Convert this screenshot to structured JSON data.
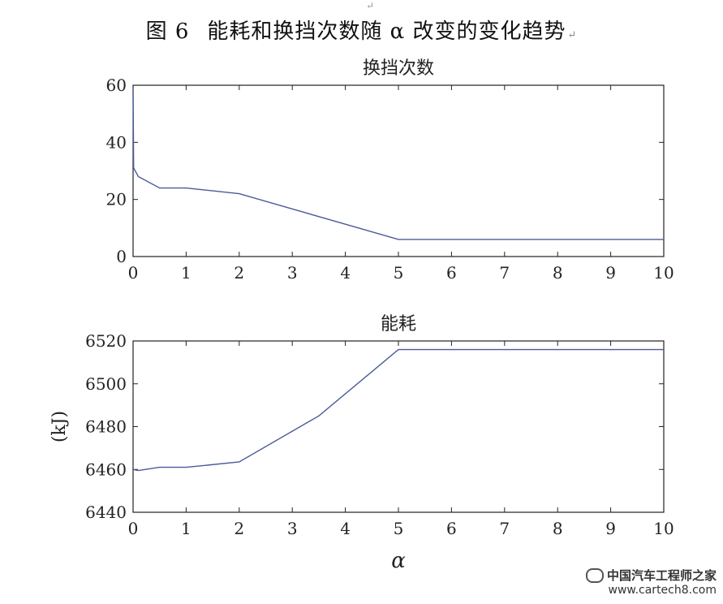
{
  "caption": {
    "figure_number": "图 6",
    "text": "能耗和换挡次数随 α 改变的变化趋势",
    "return_mark": "↵"
  },
  "top_mark": "↵",
  "watermark": {
    "line1": "中国汽车工程师之家",
    "line2": "www.cartech8.com"
  },
  "colors": {
    "series": "#4a5a9a",
    "axis": "#222222"
  },
  "chart_data": [
    {
      "type": "line",
      "title": "换挡次数",
      "xlabel": "",
      "ylabel": "",
      "xlim": [
        0,
        10
      ],
      "ylim": [
        0,
        60
      ],
      "xticks": [
        0,
        1,
        2,
        3,
        4,
        5,
        6,
        7,
        8,
        9,
        10
      ],
      "yticks": [
        0,
        20,
        40,
        60
      ],
      "grid": false,
      "series": [
        {
          "x": [
            0,
            0.01,
            0.1,
            0.5,
            1,
            2,
            5,
            10
          ],
          "y": [
            59,
            31,
            28,
            24,
            24,
            22,
            6,
            6
          ]
        }
      ]
    },
    {
      "type": "line",
      "title": "能耗",
      "xlabel": "α",
      "ylabel": "(kJ)",
      "xlim": [
        0,
        10
      ],
      "ylim": [
        6440,
        6520
      ],
      "xticks": [
        0,
        1,
        2,
        3,
        4,
        5,
        6,
        7,
        8,
        9,
        10
      ],
      "yticks": [
        6440,
        6460,
        6480,
        6500,
        6520
      ],
      "grid": false,
      "series": [
        {
          "x": [
            0,
            0.1,
            0.5,
            1,
            2,
            3.5,
            5,
            10
          ],
          "y": [
            6460,
            6459.5,
            6461,
            6461,
            6463.5,
            6485,
            6516,
            6516
          ]
        }
      ]
    }
  ]
}
